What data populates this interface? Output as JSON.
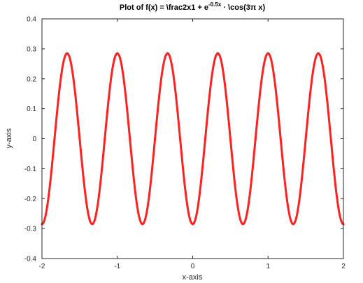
{
  "chart_data": {
    "type": "line",
    "title": {
      "main": "Plot of f(x) = \\frac2x1 + e",
      "superscript": "-0.5x",
      "suffix": " · \\cos(3π x)"
    },
    "xlabel": "x-axis",
    "ylabel": "y-axis",
    "xlim": [
      -2,
      2
    ],
    "ylim": [
      -0.4,
      0.4
    ],
    "xticks": [
      -2,
      -1,
      0,
      1,
      2
    ],
    "yticks": [
      -0.4,
      -0.3,
      -0.2,
      -0.1,
      0,
      0.1,
      0.2,
      0.3,
      0.4
    ],
    "xtick_labels": [
      "-2",
      "-1",
      "0",
      "1",
      "2"
    ],
    "ytick_labels": [
      "-0.4",
      "-0.3",
      "-0.2",
      "-0.1",
      "0",
      "0.1",
      "0.2",
      "0.3",
      "0.4"
    ],
    "grid": false,
    "series": [
      {
        "color": "#ff2020",
        "amplitude": 0.285,
        "frequency_cycles_per_unit": 1.5,
        "x_start": -2,
        "x_end": 2,
        "x": [
          -2,
          -1.8333,
          -1.6667,
          -1.5,
          -1.3333,
          -1.1667,
          -1,
          -0.8333,
          -0.6667,
          -0.5,
          -0.3333,
          -0.1667,
          0,
          0.1667,
          0.3333,
          0.5,
          0.6667,
          0.8333,
          1,
          1.1667,
          1.3333,
          1.5,
          1.6667,
          1.8333,
          2
        ],
        "y": [
          -0.285,
          0,
          0.285,
          0,
          -0.285,
          0,
          0.285,
          0,
          -0.285,
          0,
          0.285,
          0,
          -0.285,
          0,
          0.285,
          0,
          -0.285,
          0,
          0.285,
          0,
          -0.285,
          0,
          0.285,
          0,
          -0.285
        ]
      }
    ]
  }
}
